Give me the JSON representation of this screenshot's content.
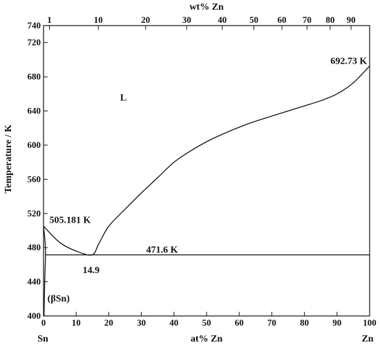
{
  "chart_data": {
    "type": "line",
    "title": "",
    "xlabel": "at% Zn",
    "ylabel": "Temperature / K",
    "top_xlabel": "wt% Zn",
    "x_left_label": "Sn",
    "x_right_label": "Zn",
    "xlim": [
      0,
      100
    ],
    "ylim": [
      400,
      740
    ],
    "xticks": [
      0,
      10,
      20,
      30,
      40,
      50,
      60,
      70,
      80,
      90,
      100
    ],
    "yticks": [
      400,
      440,
      480,
      520,
      560,
      600,
      640,
      680,
      720,
      740
    ],
    "top_ticks": [
      {
        "label": "1",
        "at": 1.8
      },
      {
        "label": "10",
        "at": 16.8
      },
      {
        "label": "20",
        "at": 31.3
      },
      {
        "label": "30",
        "at": 43.9
      },
      {
        "label": "40",
        "at": 54.8
      },
      {
        "label": "50",
        "at": 64.5
      },
      {
        "label": "60",
        "at": 73.1
      },
      {
        "label": "70",
        "at": 80.8
      },
      {
        "label": "80",
        "at": 87.9
      },
      {
        "label": "90",
        "at": 94.3
      }
    ],
    "series": [
      {
        "id": "liquidus",
        "points": [
          [
            0,
            505.181
          ],
          [
            5,
            486
          ],
          [
            10,
            476
          ],
          [
            14.9,
            471.6
          ],
          [
            17,
            485
          ],
          [
            20,
            505
          ],
          [
            25,
            525
          ],
          [
            30,
            544
          ],
          [
            35,
            562
          ],
          [
            40,
            580
          ],
          [
            45,
            593
          ],
          [
            50,
            604
          ],
          [
            55,
            613
          ],
          [
            60,
            621
          ],
          [
            65,
            628
          ],
          [
            70,
            634
          ],
          [
            75,
            640
          ],
          [
            80,
            646
          ],
          [
            85,
            652
          ],
          [
            90,
            660
          ],
          [
            95,
            673
          ],
          [
            100,
            692.73
          ]
        ]
      },
      {
        "id": "solvus",
        "points": [
          [
            0,
            505.181
          ],
          [
            0.4,
            490
          ],
          [
            0.6,
            471.6
          ],
          [
            0.35,
            440
          ],
          [
            0.15,
            400
          ]
        ]
      },
      {
        "id": "eutectic",
        "points": [
          [
            0.6,
            471.6
          ],
          [
            100,
            471.6
          ]
        ]
      }
    ],
    "annotations": [
      {
        "text": "692.73 K",
        "x": 88,
        "y": 695
      },
      {
        "text": "L",
        "x": 23.5,
        "y": 652
      },
      {
        "text": "505.181 K",
        "x": 1.8,
        "y": 509
      },
      {
        "text": "471.6 K",
        "x": 31.5,
        "y": 474
      },
      {
        "text": "14.9",
        "x": 12,
        "y": 450
      },
      {
        "text": "(βSn)",
        "x": 1.2,
        "y": 417
      }
    ],
    "grid": false,
    "legend": "none"
  }
}
